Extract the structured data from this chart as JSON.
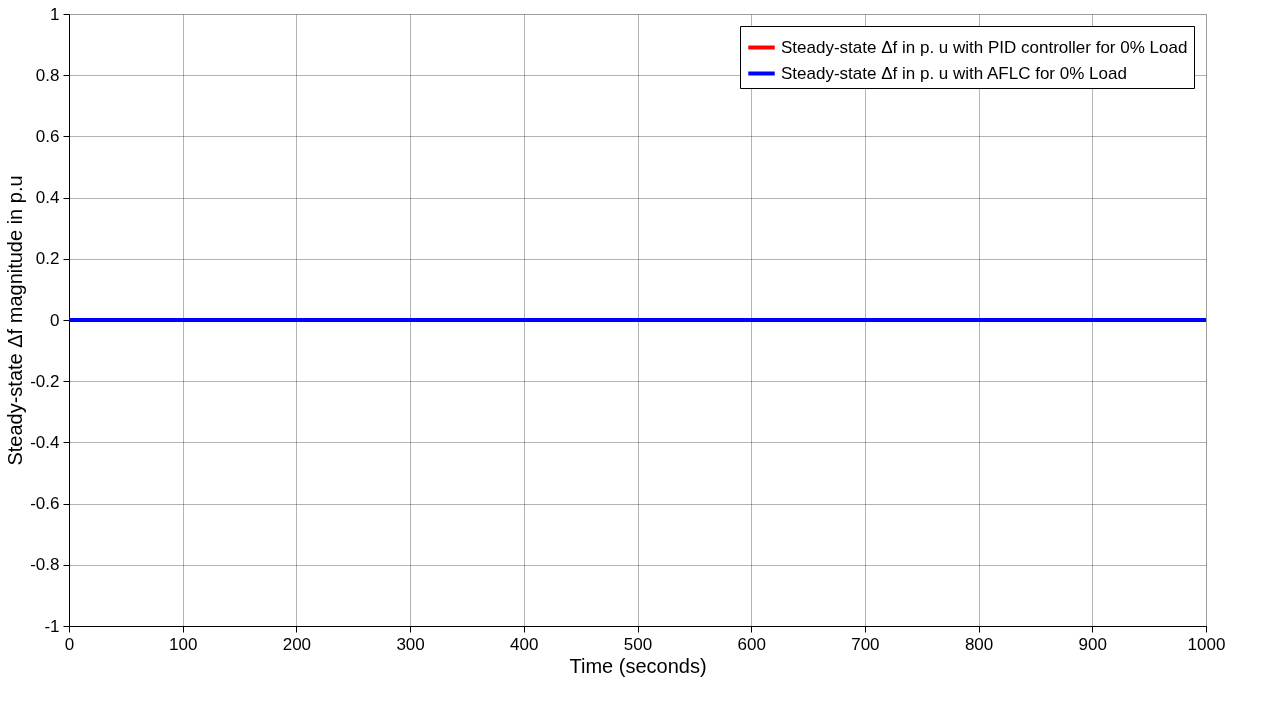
{
  "chart_data": {
    "type": "line",
    "xlabel": "Time (seconds)",
    "ylabel": "Steady-state Δf  magnitude in p.u",
    "x": [
      0,
      1000
    ],
    "series": [
      {
        "name": "Steady-state Δf in p. u with PID controller for 0% Load",
        "color": "#ff0000",
        "values": [
          null,
          null
        ]
      },
      {
        "name": "Steady-state Δf in p. u with AFLC for 0% Load",
        "color": "#0000ff",
        "values": [
          0,
          0
        ]
      }
    ],
    "xlim": [
      0,
      1000
    ],
    "xticks": [
      0,
      100,
      200,
      300,
      400,
      500,
      600,
      700,
      800,
      900,
      1000
    ],
    "ylim": [
      -1,
      1
    ],
    "yticks": [
      -1,
      -0.8,
      -0.6,
      -0.4,
      -0.2,
      0,
      0.2,
      0.4,
      0.6,
      0.8,
      1
    ],
    "grid": true,
    "legend": "top right",
    "marker": "none",
    "line_style": "solid"
  }
}
